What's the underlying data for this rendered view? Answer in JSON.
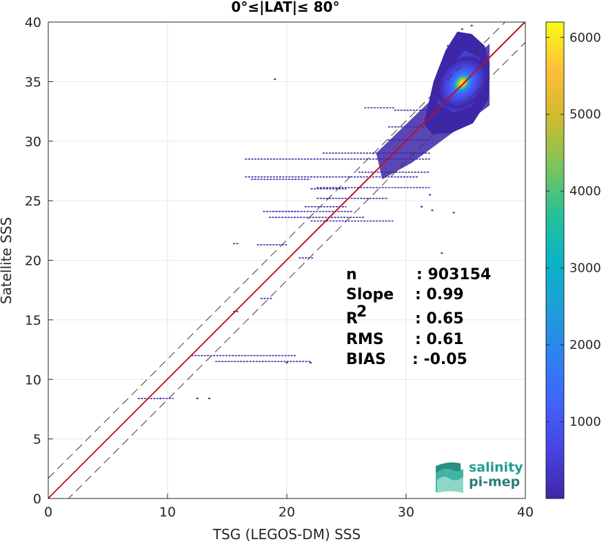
{
  "chart_data": {
    "type": "heatmap",
    "title": "0°≤|LAT|≤ 80°",
    "xlabel": "TSG (LEGOS-DM) SSS",
    "ylabel": "Satellite SSS",
    "xlim": [
      0,
      40
    ],
    "ylim": [
      0,
      40
    ],
    "xticks": [
      "0",
      "10",
      "20",
      "30",
      "40"
    ],
    "yticks": [
      "0",
      "5",
      "10",
      "15",
      "20",
      "25",
      "30",
      "35",
      "40"
    ],
    "grid": true,
    "colorbar": {
      "colormap": "parula",
      "range": [
        0,
        6200
      ],
      "ticks": [
        "1000",
        "2000",
        "3000",
        "4000",
        "5000",
        "6000"
      ]
    },
    "reference_lines": [
      {
        "name": "1:1 line",
        "style": "solid",
        "color": "#6a6a6a"
      },
      {
        "name": "fit",
        "style": "solid",
        "color": "#cc0000",
        "slope": 0.99
      },
      {
        "name": "upper envelope",
        "style": "dashed",
        "offset": 1.7
      },
      {
        "name": "lower envelope",
        "style": "dashed",
        "offset": -1.7
      }
    ],
    "stats": [
      {
        "label": "n",
        "sep": ": ",
        "value": "903154"
      },
      {
        "label": "Slope",
        "sep": ": ",
        "value": "0.99"
      },
      {
        "label": "R",
        "sup": "2",
        "sep": ": ",
        "value": "0.65"
      },
      {
        "label": "RMS",
        "sep": ": ",
        "value": "0.61"
      },
      {
        "label": "BIAS",
        "sep": ": ",
        "value": "-0.05"
      }
    ],
    "core_density": {
      "center": [
        34.7,
        34.9
      ],
      "peak_count": 6200
    },
    "scatter_segments": [
      {
        "x0": 7.5,
        "x1": 10.5,
        "y": 8.4
      },
      {
        "x0": 12.0,
        "x1": 20.8,
        "y": 12.0
      },
      {
        "x0": 14.0,
        "x1": 22.0,
        "y": 11.5
      },
      {
        "x0": 17.8,
        "x1": 18.8,
        "y": 16.8
      },
      {
        "x0": 15.5,
        "x1": 16.0,
        "y": 15.7
      },
      {
        "x0": 17.5,
        "x1": 20.0,
        "y": 21.3
      },
      {
        "x0": 21.0,
        "x1": 22.2,
        "y": 20.2
      },
      {
        "x0": 18.5,
        "x1": 26.5,
        "y": 23.6
      },
      {
        "x0": 22.0,
        "x1": 29.0,
        "y": 23.3
      },
      {
        "x0": 18.8,
        "x1": 25.5,
        "y": 24.1
      },
      {
        "x0": 21.5,
        "x1": 25.0,
        "y": 24.5
      },
      {
        "x0": 22.5,
        "x1": 28.5,
        "y": 25.2
      },
      {
        "x0": 22.0,
        "x1": 25.0,
        "y": 26.0
      },
      {
        "x0": 22.5,
        "x1": 32.0,
        "y": 26.1
      },
      {
        "x0": 17.0,
        "x1": 22.0,
        "y": 26.8
      },
      {
        "x0": 16.5,
        "x1": 31.0,
        "y": 27.0
      },
      {
        "x0": 26.0,
        "x1": 32.0,
        "y": 27.4
      },
      {
        "x0": 16.5,
        "x1": 32.0,
        "y": 28.5
      },
      {
        "x0": 23.0,
        "x1": 32.0,
        "y": 29.0
      },
      {
        "x0": 28.5,
        "x1": 33.0,
        "y": 31.2
      },
      {
        "x0": 29.0,
        "x1": 33.0,
        "y": 32.6
      },
      {
        "x0": 26.5,
        "x1": 29.0,
        "y": 32.8
      },
      {
        "x0": 28.5,
        "x1": 32.0,
        "y": 30.1
      },
      {
        "x0": 18.0,
        "x1": 21.0,
        "y": 24.1
      },
      {
        "x0": 15.5,
        "x1": 16.0,
        "y": 21.4
      }
    ],
    "scatter_points": [
      [
        19.0,
        35.2
      ],
      [
        34.7,
        39.4
      ],
      [
        35.5,
        39.7
      ],
      [
        33.5,
        38.0
      ],
      [
        32.2,
        24.2
      ],
      [
        31.3,
        24.5
      ],
      [
        33.0,
        20.6
      ],
      [
        34.0,
        24.0
      ],
      [
        32.0,
        25.5
      ],
      [
        9.4,
        8.4
      ],
      [
        12.5,
        8.4
      ],
      [
        13.5,
        8.4
      ],
      [
        22.0,
        11.4
      ],
      [
        20.0,
        11.4
      ]
    ]
  },
  "logo": {
    "line1": "salinity",
    "line2": "pi-mep"
  }
}
